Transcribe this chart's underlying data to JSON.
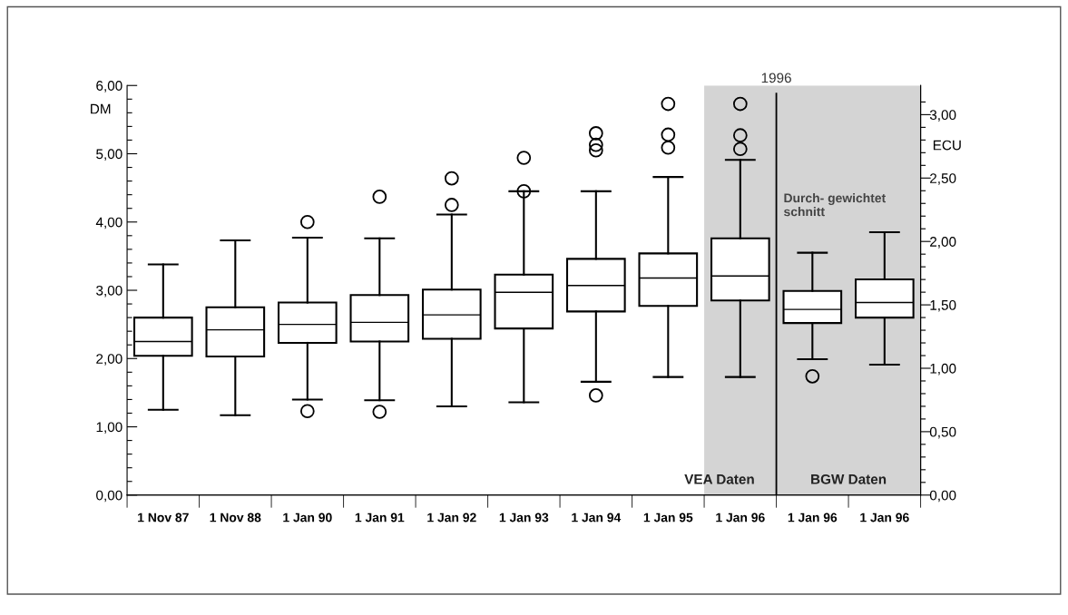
{
  "chart_data": {
    "type": "box",
    "categories": [
      "1 Nov 87",
      "1 Nov 88",
      "1 Jan 90",
      "1 Jan 91",
      "1 Jan 92",
      "1 Jan 93",
      "1 Jan 94",
      "1 Jan 95",
      "1 Jan 96",
      "1 Jan 96",
      "1 Jan 96"
    ],
    "series": [
      {
        "color": "#000000",
        "boxes": [
          {
            "low": 1.25,
            "q1": 2.04,
            "median": 2.25,
            "q3": 2.6,
            "high": 3.38
          },
          {
            "low": 1.17,
            "q1": 2.03,
            "median": 2.42,
            "q3": 2.75,
            "high": 3.73
          },
          {
            "low": 1.4,
            "q1": 2.23,
            "median": 2.5,
            "q3": 2.82,
            "high": 3.77,
            "outliers": [
              4.0,
              1.23
            ]
          },
          {
            "low": 1.39,
            "q1": 2.25,
            "median": 2.53,
            "q3": 2.93,
            "high": 3.76,
            "outliers": [
              4.37,
              1.22
            ]
          },
          {
            "low": 1.3,
            "q1": 2.29,
            "median": 2.64,
            "q3": 3.01,
            "high": 4.11,
            "outliers": [
              4.64,
              4.25
            ]
          },
          {
            "low": 1.36,
            "q1": 2.44,
            "median": 2.97,
            "q3": 3.23,
            "high": 4.45,
            "outliers": [
              4.94,
              4.45
            ]
          },
          {
            "low": 1.66,
            "q1": 2.69,
            "median": 3.07,
            "q3": 3.46,
            "high": 4.45,
            "outliers": [
              1.46,
              5.3,
              5.13,
              5.05
            ]
          },
          {
            "low": 1.73,
            "q1": 2.77,
            "median": 3.18,
            "q3": 3.54,
            "high": 4.66,
            "outliers": [
              5.73,
              5.28,
              5.09
            ]
          },
          {
            "low": 1.73,
            "q1": 2.85,
            "median": 3.21,
            "q3": 3.76,
            "high": 4.91,
            "outliers": [
              5.73,
              5.27,
              5.07
            ]
          },
          {
            "low": 1.99,
            "q1": 2.52,
            "median": 2.72,
            "q3": 2.99,
            "high": 3.55,
            "outliers": [
              1.74
            ]
          },
          {
            "low": 1.91,
            "q1": 2.6,
            "median": 2.82,
            "q3": 3.16,
            "high": 3.85
          }
        ]
      }
    ],
    "ylabel": "DM",
    "y2label": "ECU",
    "ylim": [
      0,
      6
    ],
    "yticks": [
      {
        "value": 0,
        "label": "0,00"
      },
      {
        "value": 0.2,
        "label": null
      },
      {
        "value": 0.4,
        "label": null
      },
      {
        "value": 0.6,
        "label": null
      },
      {
        "value": 0.8,
        "label": null
      },
      {
        "value": 1,
        "label": "1,00"
      },
      {
        "value": 1.2,
        "label": null
      },
      {
        "value": 1.4,
        "label": null
      },
      {
        "value": 1.6,
        "label": null
      },
      {
        "value": 1.8,
        "label": null
      },
      {
        "value": 2,
        "label": "2,00"
      },
      {
        "value": 2.2,
        "label": null
      },
      {
        "value": 2.4,
        "label": null
      },
      {
        "value": 2.6,
        "label": null
      },
      {
        "value": 2.8,
        "label": null
      },
      {
        "value": 3,
        "label": "3,00"
      },
      {
        "value": 3.2,
        "label": null
      },
      {
        "value": 3.4,
        "label": null
      },
      {
        "value": 3.6,
        "label": null
      },
      {
        "value": 3.8,
        "label": null
      },
      {
        "value": 4,
        "label": "4,00"
      },
      {
        "value": 4.2,
        "label": null
      },
      {
        "value": 4.4,
        "label": null
      },
      {
        "value": 4.6,
        "label": null
      },
      {
        "value": 4.8,
        "label": null
      },
      {
        "value": 5,
        "label": "5,00"
      },
      {
        "value": 5.2,
        "label": null
      },
      {
        "value": 5.4,
        "label": null
      },
      {
        "value": 5.6,
        "label": null
      },
      {
        "value": 5.8,
        "label": null
      },
      {
        "value": 6,
        "label": "6,00"
      }
    ],
    "y2lim": [
      0,
      3.23
    ],
    "y2ticks": [
      {
        "value": 0,
        "label": "0,00"
      },
      {
        "value": 0.1,
        "label": null
      },
      {
        "value": 0.2,
        "label": null
      },
      {
        "value": 0.3,
        "label": null
      },
      {
        "value": 0.4,
        "label": null
      },
      {
        "value": 0.5,
        "label": "0,50"
      },
      {
        "value": 0.6,
        "label": null
      },
      {
        "value": 0.7,
        "label": null
      },
      {
        "value": 0.8,
        "label": null
      },
      {
        "value": 0.9,
        "label": null
      },
      {
        "value": 1,
        "label": "1,00"
      },
      {
        "value": 1.1,
        "label": null
      },
      {
        "value": 1.2,
        "label": null
      },
      {
        "value": 1.3,
        "label": null
      },
      {
        "value": 1.4,
        "label": null
      },
      {
        "value": 1.5,
        "label": "1,50"
      },
      {
        "value": 1.6,
        "label": null
      },
      {
        "value": 1.7,
        "label": null
      },
      {
        "value": 1.8,
        "label": null
      },
      {
        "value": 1.9,
        "label": null
      },
      {
        "value": 2,
        "label": "2,00"
      },
      {
        "value": 2.1,
        "label": null
      },
      {
        "value": 2.2,
        "label": null
      },
      {
        "value": 2.3,
        "label": null
      },
      {
        "value": 2.4,
        "label": null
      },
      {
        "value": 2.5,
        "label": "2,50"
      },
      {
        "value": 2.6,
        "label": null
      },
      {
        "value": 2.7,
        "label": null
      },
      {
        "value": 2.8,
        "label": null
      },
      {
        "value": 2.9,
        "label": null
      },
      {
        "value": 3,
        "label": "3,00"
      },
      {
        "value": 3.1,
        "label": null
      }
    ],
    "annotations": [
      "VEA Daten",
      "BGW Daten",
      "Durch- gewichtet\nschnitt",
      "1996"
    ],
    "grid": false
  }
}
